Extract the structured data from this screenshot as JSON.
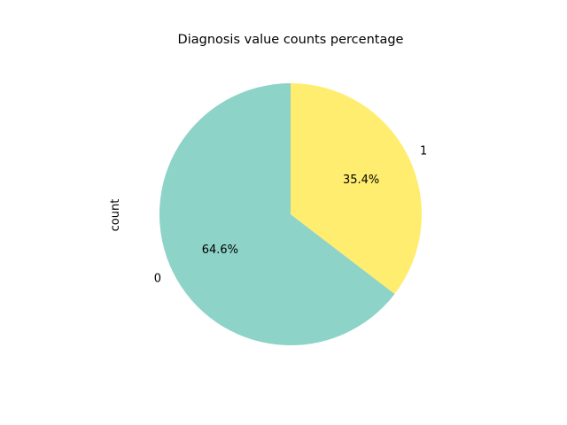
{
  "chart_data": {
    "type": "pie",
    "title": "Diagnosis value counts percentage",
    "ylabel": "count",
    "categories": [
      "0",
      "1"
    ],
    "values": [
      64.6,
      35.4
    ],
    "autopct_labels": [
      "64.6%",
      "35.4%"
    ],
    "colors": [
      "#8dd3c7",
      "#ffed6f"
    ],
    "start_angle_deg": 90,
    "direction": "counterclockwise",
    "legend": "none"
  }
}
